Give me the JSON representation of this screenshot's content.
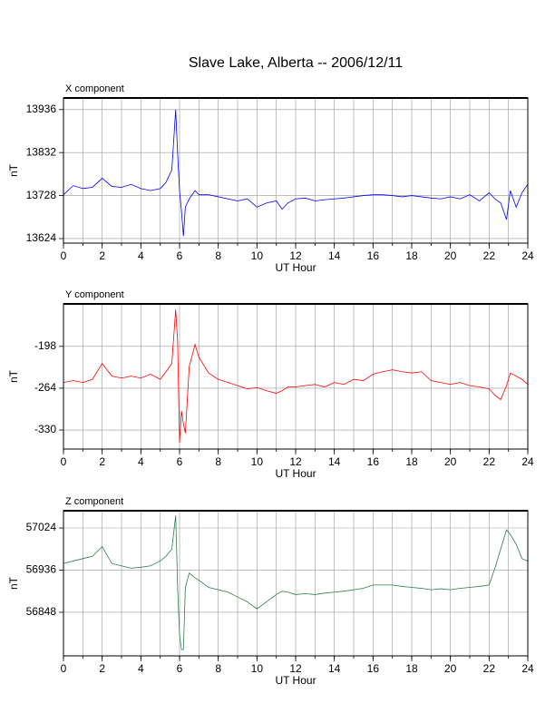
{
  "title": "Slave Lake, Alberta -- 2006/12/11",
  "chart_data": [
    {
      "type": "line",
      "title": "X component",
      "xlabel": "UT Hour",
      "ylabel": "nT",
      "color": "#0000ff",
      "xlim": [
        0,
        24
      ],
      "xticks": [
        0,
        2,
        4,
        6,
        8,
        10,
        12,
        14,
        16,
        18,
        20,
        22,
        24
      ],
      "xgrid_step": 1,
      "grid": true,
      "ylim": [
        13613,
        13964
      ],
      "yticks": [
        13624,
        13728,
        13832,
        13936
      ],
      "x": [
        0,
        0.5,
        1,
        1.5,
        2,
        2.5,
        3,
        3.5,
        4,
        4.5,
        5,
        5.3,
        5.6,
        5.8,
        5.9,
        6.0,
        6.1,
        6.2,
        6.3,
        6.5,
        6.8,
        7,
        7.5,
        8,
        8.5,
        9,
        9.5,
        10,
        10.5,
        11,
        11.3,
        11.6,
        12,
        12.5,
        13,
        13.5,
        14,
        14.5,
        15,
        15.5,
        16,
        16.5,
        17,
        17.5,
        18,
        18.5,
        19,
        19.5,
        20,
        20.5,
        21,
        21.5,
        22,
        22.3,
        22.6,
        22.9,
        23.1,
        23.4,
        23.7,
        24
      ],
      "values": [
        13730,
        13752,
        13745,
        13748,
        13770,
        13750,
        13748,
        13755,
        13745,
        13740,
        13745,
        13760,
        13790,
        13936,
        13830,
        13740,
        13690,
        13630,
        13700,
        13720,
        13740,
        13730,
        13730,
        13725,
        13720,
        13715,
        13720,
        13700,
        13710,
        13715,
        13695,
        13710,
        13720,
        13722,
        13715,
        13718,
        13720,
        13722,
        13725,
        13728,
        13730,
        13730,
        13728,
        13725,
        13728,
        13725,
        13722,
        13720,
        13725,
        13720,
        13730,
        13715,
        13735,
        13720,
        13710,
        13670,
        13740,
        13700,
        13735,
        13755
      ]
    },
    {
      "type": "line",
      "title": "Y component",
      "xlabel": "UT Hour",
      "ylabel": "nT",
      "color": "#ff0000",
      "xlim": [
        0,
        24
      ],
      "xticks": [
        0,
        2,
        4,
        6,
        8,
        10,
        12,
        14,
        16,
        18,
        20,
        22,
        24
      ],
      "xgrid_step": 1,
      "grid": true,
      "ylim": [
        -360,
        -131
      ],
      "yticks": [
        -330,
        -264,
        -198
      ],
      "x": [
        0,
        0.5,
        1,
        1.5,
        2,
        2.5,
        3,
        3.5,
        4,
        4.5,
        5,
        5.3,
        5.6,
        5.8,
        5.9,
        6.0,
        6.1,
        6.2,
        6.3,
        6.5,
        6.8,
        7,
        7.5,
        8,
        8.5,
        9,
        9.5,
        10,
        10.5,
        11,
        11.3,
        11.6,
        12,
        12.5,
        13,
        13.5,
        14,
        14.5,
        15,
        15.5,
        16,
        16.5,
        17,
        17.5,
        18,
        18.5,
        19,
        19.5,
        20,
        20.5,
        21,
        21.5,
        22,
        22.3,
        22.6,
        22.9,
        23.1,
        23.4,
        23.7,
        24
      ],
      "values": [
        -255,
        -252,
        -255,
        -250,
        -225,
        -245,
        -248,
        -245,
        -248,
        -242,
        -250,
        -238,
        -225,
        -140,
        -190,
        -350,
        -300,
        -320,
        -335,
        -230,
        -195,
        -215,
        -240,
        -250,
        -255,
        -260,
        -265,
        -263,
        -268,
        -272,
        -268,
        -262,
        -262,
        -260,
        -258,
        -262,
        -255,
        -258,
        -250,
        -252,
        -242,
        -238,
        -235,
        -238,
        -240,
        -238,
        -252,
        -255,
        -258,
        -255,
        -260,
        -262,
        -265,
        -275,
        -282,
        -260,
        -240,
        -245,
        -250,
        -258
      ]
    },
    {
      "type": "line",
      "title": "Z component",
      "xlabel": "UT Hour",
      "ylabel": "nT",
      "color": "#2e7d4f",
      "xlim": [
        0,
        24
      ],
      "xticks": [
        0,
        2,
        4,
        6,
        8,
        10,
        12,
        14,
        16,
        18,
        20,
        22,
        24
      ],
      "xgrid_step": 1,
      "grid": true,
      "ylim": [
        56757,
        57060
      ],
      "yticks": [
        56848,
        56936,
        57024
      ],
      "x": [
        0,
        0.5,
        1,
        1.5,
        2,
        2.5,
        3,
        3.5,
        4,
        4.5,
        5,
        5.3,
        5.6,
        5.8,
        5.9,
        6.0,
        6.1,
        6.2,
        6.3,
        6.5,
        6.8,
        7,
        7.5,
        8,
        8.5,
        9,
        9.5,
        10,
        10.5,
        11,
        11.3,
        11.6,
        12,
        12.5,
        13,
        13.5,
        14,
        14.5,
        15,
        15.5,
        16,
        16.5,
        17,
        17.5,
        18,
        18.5,
        19,
        19.5,
        20,
        20.5,
        21,
        21.5,
        22,
        22.3,
        22.6,
        22.9,
        23.1,
        23.4,
        23.7,
        24
      ],
      "values": [
        56950,
        56955,
        56960,
        56965,
        56985,
        56950,
        56945,
        56940,
        56942,
        56945,
        56955,
        56965,
        56980,
        57050,
        56900,
        56800,
        56770,
        56770,
        56900,
        56930,
        56920,
        56915,
        56900,
        56895,
        56890,
        56880,
        56870,
        56855,
        56870,
        56885,
        56892,
        56890,
        56885,
        56887,
        56885,
        56888,
        56890,
        56892,
        56895,
        56898,
        56905,
        56905,
        56905,
        56902,
        56900,
        56898,
        56895,
        56897,
        56895,
        56898,
        56900,
        56902,
        56905,
        56940,
        56980,
        57020,
        57010,
        56990,
        56960,
        56955
      ]
    }
  ]
}
